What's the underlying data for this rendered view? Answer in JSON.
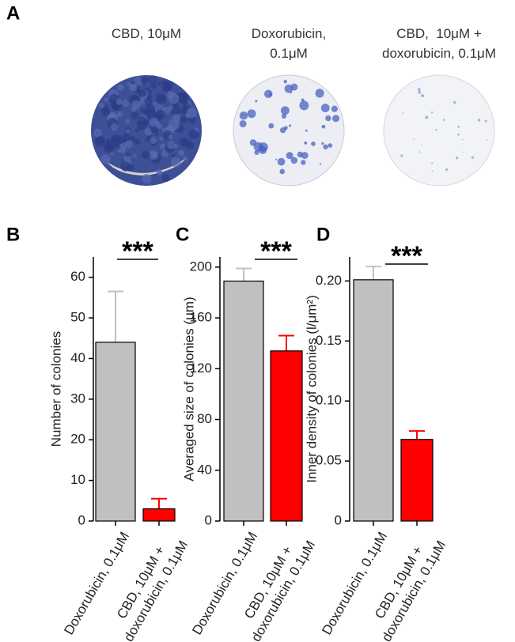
{
  "panel_a": {
    "label": "A",
    "images": [
      {
        "caption": "CBD, 10μM"
      },
      {
        "caption": "Doxorubicin,\n0.1μM"
      },
      {
        "caption": "CBD,  10μM +\ndoxorubicin, 0.1μM"
      }
    ]
  },
  "chart_data": [
    {
      "type": "bar",
      "label": "B",
      "annotation": "***",
      "y_label": "Number of colonies",
      "categories": [
        "Doxorubicin, 0.1μM",
        "CBD, 10μM +\ndoxorubicin, 0.1μM"
      ],
      "values": [
        44,
        3
      ],
      "errors": [
        12.5,
        2.5
      ],
      "colors": [
        "#c0c0c0",
        "#ff0000"
      ],
      "ylim": [
        0,
        65
      ],
      "yticks": [
        0,
        10,
        20,
        30,
        40,
        50,
        60
      ]
    },
    {
      "type": "bar",
      "label": "C",
      "annotation": "***",
      "y_label": "Averaged size of colonies (μm)",
      "categories": [
        "Doxorubicin, 0.1μM",
        "CBD, 10μM +\ndoxorubicin, 0.1μM"
      ],
      "values": [
        189,
        134
      ],
      "errors": [
        10,
        12
      ],
      "colors": [
        "#c0c0c0",
        "#ff0000"
      ],
      "ylim": [
        0,
        208
      ],
      "yticks": [
        0,
        40,
        80,
        120,
        160,
        200
      ]
    },
    {
      "type": "bar",
      "label": "D",
      "annotation": "***",
      "y_label": "Inner density of colonies (l/μm²)",
      "categories": [
        "Doxorubicin, 0.1μM",
        "CBD, 10μM +\ndoxorubicin, 0.1μM"
      ],
      "values": [
        0.201,
        0.068
      ],
      "errors": [
        0.011,
        0.007
      ],
      "colors": [
        "#c0c0c0",
        "#ff0000"
      ],
      "ylim": [
        0,
        0.22
      ],
      "yticks": [
        0,
        0.05,
        {
          "value": 0.1,
          "label": "0.10"
        },
        0.15,
        {
          "value": 0.2,
          "label": "0.20"
        }
      ]
    }
  ]
}
